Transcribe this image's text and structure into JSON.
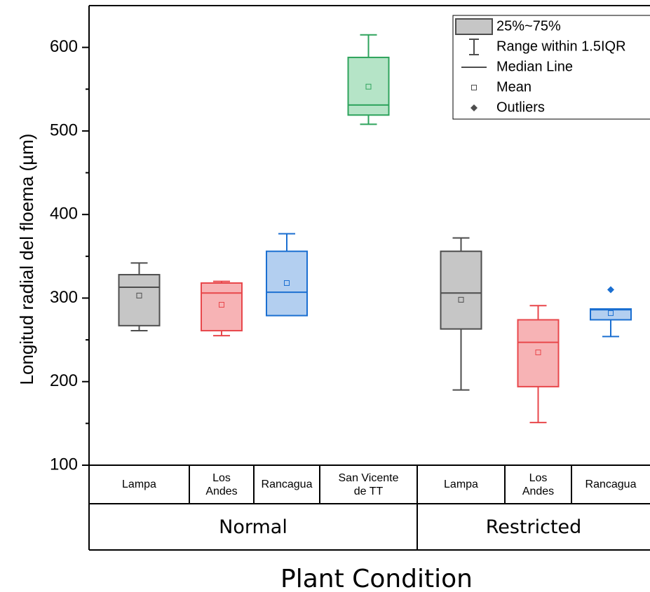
{
  "chart_data": {
    "type": "box",
    "y_label": "Longitud radial del floema (µm)",
    "x_label": "Plant Condition",
    "ylim": [
      100,
      650
    ],
    "yticks": [
      100,
      200,
      300,
      400,
      500,
      600
    ],
    "yminorticks": [
      150,
      250,
      350,
      450,
      550
    ],
    "categories": [
      "Lampa",
      "Los Andes",
      "Rancagua",
      "San Vicente de TT",
      "Lampa",
      "Los Andes",
      "Rancagua"
    ],
    "groups": [
      "Normal",
      "Restricted"
    ],
    "legend": {
      "box": "25%~75%",
      "whisker": "Range within 1.5IQR",
      "median": "Median Line",
      "mean": "Mean",
      "outliers": "Outliers"
    },
    "legend_position": "upper right",
    "boxes": [
      {
        "color": "#4d4d4d",
        "fill": "#c6c6c6",
        "whisker_low": 261,
        "q1": 267,
        "median": 313,
        "q3": 328,
        "whisker_high": 342,
        "mean": 303,
        "outliers": []
      },
      {
        "color": "#e8474b",
        "fill": "#f7b3b5",
        "whisker_low": 255,
        "q1": 261,
        "median": 306,
        "q3": 318,
        "whisker_high": 320,
        "mean": 292,
        "outliers": []
      },
      {
        "color": "#1b6fd1",
        "fill": "#b3cff0",
        "whisker_low": 279,
        "q1": 279,
        "median": 307,
        "q3": 356,
        "whisker_high": 377,
        "mean": 318,
        "outliers": []
      },
      {
        "color": "#2ea35c",
        "fill": "#b5e4c7",
        "whisker_low": 508,
        "q1": 519,
        "median": 531,
        "q3": 588,
        "whisker_high": 615,
        "mean": 553,
        "outliers": []
      },
      {
        "color": "#4d4d4d",
        "fill": "#c6c6c6",
        "whisker_low": 190,
        "q1": 263,
        "median": 306,
        "q3": 356,
        "whisker_high": 372,
        "mean": 298,
        "outliers": []
      },
      {
        "color": "#e8474b",
        "fill": "#f7b3b5",
        "whisker_low": 151,
        "q1": 194,
        "median": 247,
        "q3": 274,
        "whisker_high": 291,
        "mean": 235,
        "outliers": []
      },
      {
        "color": "#1b6fd1",
        "fill": "#b3cff0",
        "whisker_low": 254,
        "q1": 274,
        "median": 286,
        "q3": 287,
        "whisker_high": 287,
        "mean": 282,
        "outliers": [
          310
        ]
      }
    ]
  }
}
